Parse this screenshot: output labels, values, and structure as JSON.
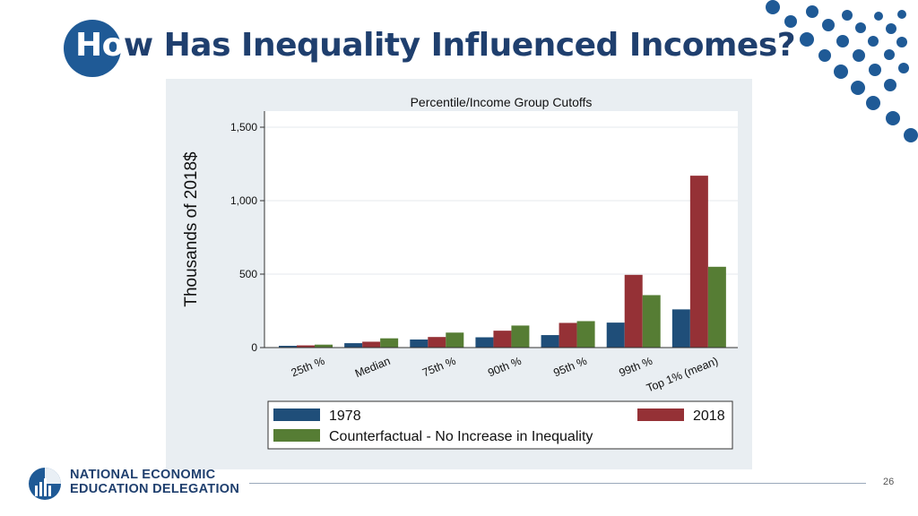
{
  "slide": {
    "title_lead": "Ho",
    "title_rest": "w Has Inequality Influenced Incomes?",
    "page_number": "26",
    "logo_line1": "NATIONAL ECONOMIC",
    "logo_line2": "EDUCATION DELEGATION"
  },
  "colors": {
    "brand_blue": "#1f5a96",
    "title_blue": "#1f3f6e",
    "chart_bg": "#e9eef2",
    "series_1978": "#1f4e79",
    "series_2018": "#953136",
    "series_counterfactual": "#567d34"
  },
  "chart_data": {
    "type": "bar",
    "title": "Percentile/Income Group Cutoffs",
    "xlabel": "",
    "ylabel": "Thousands of 2018$",
    "ylim": [
      0,
      1500
    ],
    "yticks": [
      0,
      500,
      1000,
      1500
    ],
    "ytick_labels": [
      "0",
      "500",
      "1,000",
      "1,500"
    ],
    "grid": true,
    "legend_position": "bottom",
    "categories": [
      "25th %",
      "Median",
      "75th %",
      "90th %",
      "95th %",
      "99th %",
      "Top 1% (mean)"
    ],
    "series": [
      {
        "name": "1978",
        "values": [
          12,
          30,
          55,
          70,
          85,
          170,
          260
        ]
      },
      {
        "name": "2018",
        "values": [
          15,
          40,
          72,
          115,
          168,
          495,
          1170
        ]
      },
      {
        "name": "Counterfactual - No Increase in Inequality",
        "values": [
          20,
          63,
          102,
          150,
          180,
          357,
          550
        ]
      }
    ]
  }
}
